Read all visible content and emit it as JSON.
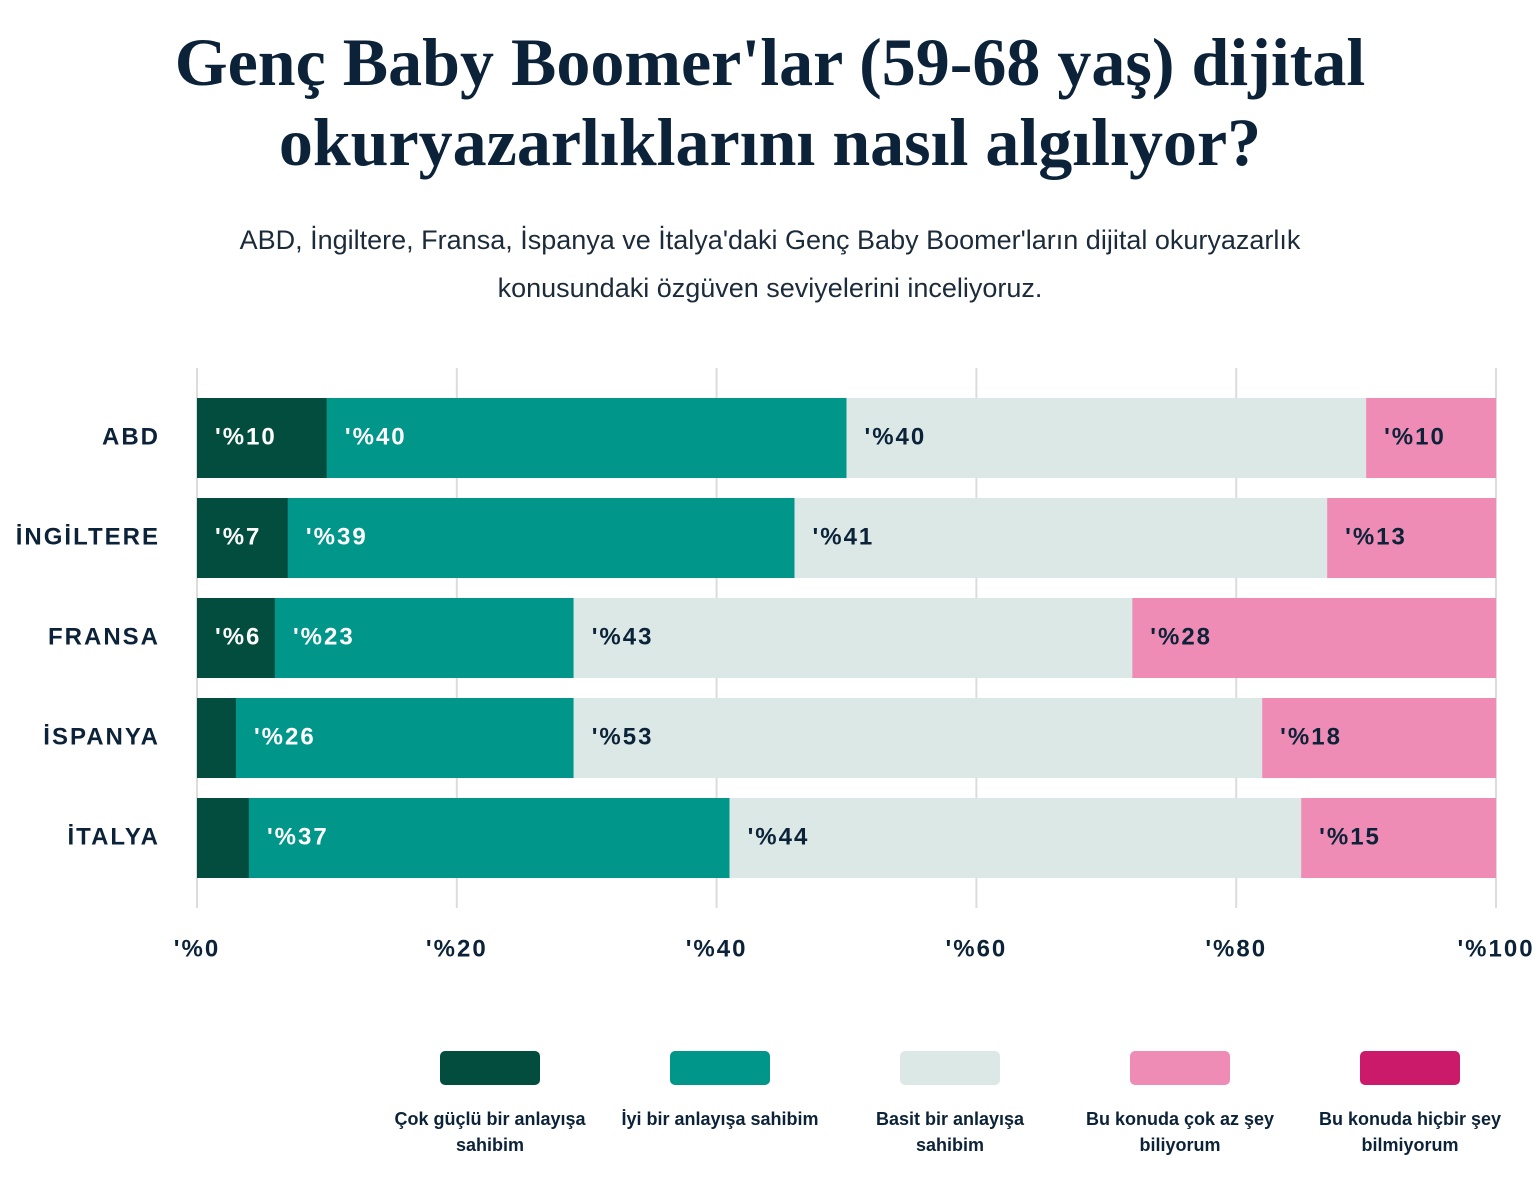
{
  "chart_data": {
    "type": "bar",
    "orientation": "horizontal",
    "stacked": true,
    "title": "Genç Baby Boomer'lar (59-68 yaş) dijital okuryazarlıklarını nasıl algılıyor?",
    "subtitle": "ABD, İngiltere, Fransa, İspanya ve İtalya'daki Genç Baby Boomer'ların dijital okuryazarlık konusundaki özgüven seviyelerini inceliyoruz.",
    "categories": [
      "ABD",
      "İNGİLTERE",
      "FRANSA",
      "İSPANYA",
      "İTALYA"
    ],
    "series": [
      {
        "name": "Çok güçlü bir anlayışa sahibim",
        "color": "#034d3f",
        "label_color": "#ffffff",
        "values": [
          10,
          7,
          6,
          3,
          4
        ],
        "value_labels": [
          "'%10",
          "'%7",
          "'%6",
          null,
          null
        ]
      },
      {
        "name": "İyi bir anlayışa sahibim",
        "color": "#00968a",
        "label_color": "#ffffff",
        "values": [
          40,
          39,
          23,
          26,
          37
        ],
        "value_labels": [
          "'%40",
          "'%39",
          "'%23",
          "'%26",
          "'%37"
        ]
      },
      {
        "name": "Basit bir anlayışa sahibim",
        "color": "#dbe8e6",
        "label_color": "#0b2238",
        "values": [
          40,
          41,
          43,
          53,
          44
        ],
        "value_labels": [
          "'%40",
          "'%41",
          "'%43",
          "'%53",
          "'%44"
        ]
      },
      {
        "name": "Bu konuda çok az şey biliyorum",
        "color": "#ee8cb5",
        "label_color": "#0b2238",
        "values": [
          10,
          13,
          28,
          18,
          15
        ],
        "value_labels": [
          "'%10",
          "'%13",
          "'%28",
          "'%18",
          "'%15"
        ]
      },
      {
        "name": "Bu konuda hiçbir şey bilmiyorum",
        "color": "#cc1a6b",
        "label_color": "#ffffff",
        "values": [
          0,
          0,
          0,
          0,
          0
        ],
        "value_labels": [
          null,
          null,
          null,
          null,
          null
        ]
      }
    ],
    "xlim": [
      0,
      100
    ],
    "xticks": [
      {
        "value": 0,
        "label": "'%0"
      },
      {
        "value": 20,
        "label": "'%20"
      },
      {
        "value": 40,
        "label": "'%40"
      },
      {
        "value": 60,
        "label": "'%60"
      },
      {
        "value": 80,
        "label": "'%80"
      },
      {
        "value": 100,
        "label": "'%100"
      }
    ],
    "grid": true,
    "legend": "bottom"
  }
}
